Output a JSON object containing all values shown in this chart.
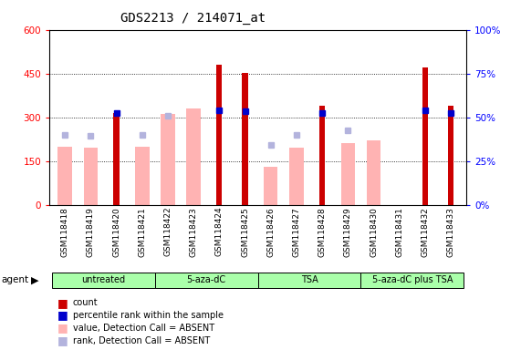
{
  "title": "GDS2213 / 214071_at",
  "samples": [
    "GSM118418",
    "GSM118419",
    "GSM118420",
    "GSM118421",
    "GSM118422",
    "GSM118423",
    "GSM118424",
    "GSM118425",
    "GSM118426",
    "GSM118427",
    "GSM118428",
    "GSM118429",
    "GSM118430",
    "GSM118431",
    "GSM118432",
    "GSM118433"
  ],
  "counts": [
    null,
    null,
    315,
    null,
    null,
    null,
    480,
    452,
    null,
    null,
    340,
    null,
    null,
    null,
    470,
    340
  ],
  "pct_ranks": [
    null,
    null,
    315,
    null,
    null,
    null,
    325,
    320,
    null,
    null,
    315,
    null,
    null,
    null,
    325,
    315
  ],
  "value_absent": [
    200,
    195,
    null,
    200,
    310,
    330,
    null,
    null,
    130,
    195,
    null,
    210,
    220,
    null,
    null,
    null
  ],
  "rank_absent": [
    240,
    235,
    null,
    240,
    305,
    null,
    null,
    null,
    205,
    240,
    null,
    255,
    null,
    null,
    null,
    null
  ],
  "count_color": "#cc0000",
  "pct_rank_color": "#0000cc",
  "value_absent_color": "#ffb3b3",
  "rank_absent_color": "#b3b3dd",
  "ylim_left": [
    0,
    600
  ],
  "ylim_right": [
    0,
    100
  ],
  "yticks_left": [
    0,
    150,
    300,
    450,
    600
  ],
  "yticks_right": [
    0,
    25,
    50,
    75,
    100
  ],
  "groups": [
    {
      "label": "untreated",
      "start": 0,
      "end": 3
    },
    {
      "label": "5-aza-dC",
      "start": 4,
      "end": 7
    },
    {
      "label": "TSA",
      "start": 8,
      "end": 11
    },
    {
      "label": "5-aza-dC plus TSA",
      "start": 12,
      "end": 15
    }
  ],
  "group_color": "#aaffaa",
  "legend_items": [
    {
      "label": "count",
      "color": "#cc0000"
    },
    {
      "label": "percentile rank within the sample",
      "color": "#0000cc"
    },
    {
      "label": "value, Detection Call = ABSENT",
      "color": "#ffb3b3"
    },
    {
      "label": "rank, Detection Call = ABSENT",
      "color": "#b3b3dd"
    }
  ]
}
